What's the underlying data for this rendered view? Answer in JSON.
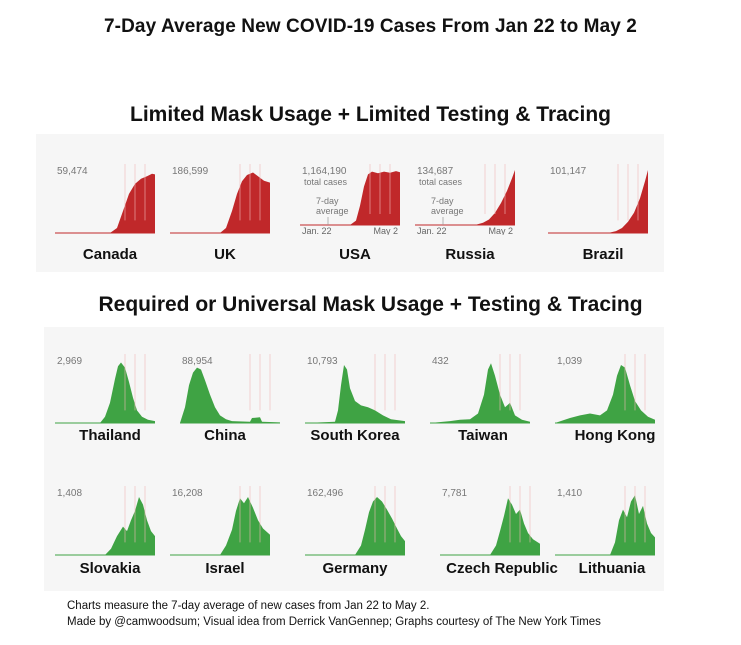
{
  "title": "7-Day Average New COVID-19 Cases From Jan 22 to May 2",
  "sections": {
    "limited": "Limited Mask Usage + Limited Testing & Tracing",
    "required": "Required or Universal Mask Usage + Testing & Tracing"
  },
  "footer": {
    "line1": "Charts measure the 7-day average of new cases from Jan 22 to May 2.",
    "line2": "Made by @camwoodsum; Visual idea from Derrick VanGennep; Graphs courtesy of The New York Times"
  },
  "colors": {
    "limited": "#c0282a",
    "required": "#3fa344",
    "background": "#f6f6f6"
  },
  "chart_data": [
    {
      "type": "area",
      "group": "limited",
      "country": "Canada",
      "label": "59,474",
      "shape": "canada"
    },
    {
      "type": "area",
      "group": "limited",
      "country": "UK",
      "label": "186,599",
      "shape": "uk"
    },
    {
      "type": "area",
      "group": "limited",
      "country": "USA",
      "label": "1,164,190",
      "label2": "total cases",
      "annotation": [
        "7-day",
        "average"
      ],
      "x_start": "Jan. 22",
      "x_end": "May 2",
      "shape": "usa"
    },
    {
      "type": "area",
      "group": "limited",
      "country": "Russia",
      "label": "134,687",
      "label2": "total cases",
      "annotation": [
        "7-day",
        "average"
      ],
      "x_start": "Jan. 22",
      "x_end": "May 2",
      "shape": "russia"
    },
    {
      "type": "area",
      "group": "limited",
      "country": "Brazil",
      "label": "101,147",
      "shape": "brazil"
    },
    {
      "type": "area",
      "group": "required",
      "country": "Thailand",
      "label": "2,969",
      "shape": "thailand"
    },
    {
      "type": "area",
      "group": "required",
      "country": "China",
      "label": "88,954",
      "shape": "china"
    },
    {
      "type": "area",
      "group": "required",
      "country": "South Korea",
      "label": "10,793",
      "shape": "southkorea"
    },
    {
      "type": "area",
      "group": "required",
      "country": "Taiwan",
      "label": "432",
      "shape": "taiwan"
    },
    {
      "type": "area",
      "group": "required",
      "country": "Hong Kong",
      "label": "1,039",
      "shape": "hongkong"
    },
    {
      "type": "area",
      "group": "required",
      "country": "Slovakia",
      "label": "1,408",
      "shape": "slovakia"
    },
    {
      "type": "area",
      "group": "required",
      "country": "Israel",
      "label": "16,208",
      "shape": "israel"
    },
    {
      "type": "area",
      "group": "required",
      "country": "Germany",
      "label": "162,496",
      "shape": "germany"
    },
    {
      "type": "area",
      "group": "required",
      "country": "Czech Republic",
      "label": "7,781",
      "shape": "czech"
    },
    {
      "type": "area",
      "group": "required",
      "country": "Lithuania",
      "label": "1,410",
      "shape": "lithuania"
    }
  ]
}
